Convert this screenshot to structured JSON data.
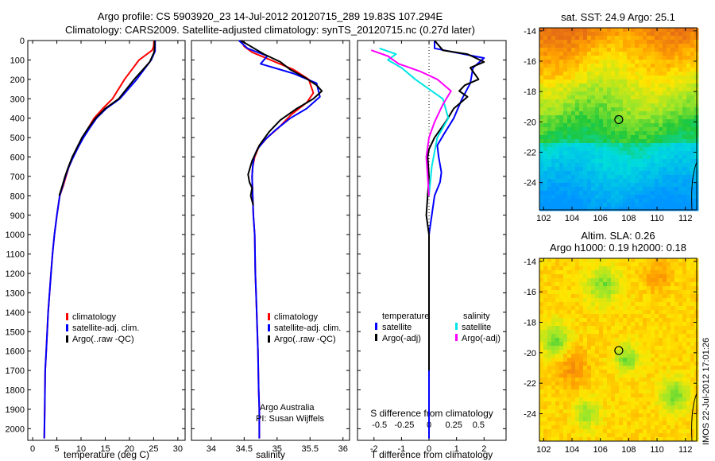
{
  "header": {
    "title_line1": "Argo profile: CS 5903920_23 14-Jul-2012 20120715_289 19.83S 107.294E",
    "title_line2": "Climatology: CARS2009. Satellite-adjusted climatology: synTS_20120715.nc (0.27d later)"
  },
  "colors": {
    "climatology": "#ff0000",
    "satellite": "#0000ff",
    "argo": "#000000",
    "satellite_salinity": "#00e5e5",
    "argo_salinity": "#ff00ff"
  },
  "depth_axis": {
    "ylim": [
      0,
      2060
    ],
    "ticks": [
      0,
      100,
      200,
      300,
      400,
      500,
      600,
      700,
      800,
      900,
      1000,
      1100,
      1200,
      1300,
      1400,
      1500,
      1600,
      1700,
      1800,
      1900,
      2000
    ]
  },
  "legend": {
    "climatology": "climatology",
    "satellite_clim": "satellite-adj. clim.",
    "argo": "Argo(..raw -QC)"
  },
  "diff_legend": {
    "temperature_head": "temperature",
    "salinity_head": "salinity",
    "satellite": "satellite",
    "argo_adj": "Argo(-adj)"
  },
  "notes": {
    "agency": "Argo Australia",
    "pi": "PI: Susan Wijffels"
  },
  "chart_data": [
    {
      "type": "line",
      "xlabel": "temperature (deg C)",
      "ylabel": "",
      "xlim": [
        -1,
        31.5
      ],
      "ylim": [
        2060,
        0
      ],
      "xticks": [
        "0",
        "5",
        "10",
        "15",
        "20",
        "25",
        "30"
      ],
      "xtick_values": [
        0,
        5,
        10,
        15,
        20,
        25,
        30
      ],
      "series": [
        {
          "name": "climatology",
          "color": "#ff0000",
          "x": [
            25.1,
            25.0,
            24.7,
            22.0,
            19.0,
            16.5,
            14.5,
            12.7,
            11.5,
            10.3,
            9.3,
            8.3,
            7.5,
            6.9,
            6.3,
            5.6,
            5.0,
            4.5,
            4.1,
            3.8,
            3.5,
            3.2,
            3.0,
            2.8,
            2.6,
            2.5,
            2.4
          ],
          "y": [
            0,
            30,
            50,
            100,
            200,
            300,
            350,
            400,
            450,
            500,
            550,
            600,
            650,
            700,
            750,
            800,
            900,
            1000,
            1100,
            1200,
            1300,
            1400,
            1500,
            1600,
            1700,
            1900,
            2050
          ]
        },
        {
          "name": "satellite-adj. clim.",
          "color": "#0000ff",
          "x": [
            25.3,
            25.3,
            25.3,
            24.5,
            21.5,
            18.0,
            15.2,
            13.2,
            11.8,
            10.5,
            9.4,
            8.4,
            7.5,
            6.8,
            6.2,
            5.6,
            5.0,
            4.5,
            4.1,
            3.8,
            3.5,
            3.2,
            3.0,
            2.8,
            2.6,
            2.5,
            2.4
          ],
          "y": [
            0,
            30,
            55,
            100,
            200,
            300,
            350,
            400,
            450,
            500,
            550,
            600,
            650,
            700,
            750,
            800,
            900,
            1000,
            1100,
            1200,
            1300,
            1400,
            1500,
            1600,
            1700,
            1900,
            2050
          ]
        },
        {
          "name": "Argo(..raw -QC)",
          "color": "#000000",
          "x": [
            25.2,
            25.2,
            25.1,
            24.2,
            21.0,
            17.8,
            15.0,
            13.0,
            11.5,
            10.2,
            9.2,
            8.2,
            7.4,
            6.7,
            6.1,
            5.5
          ],
          "y": [
            0,
            30,
            60,
            110,
            200,
            300,
            350,
            400,
            450,
            500,
            550,
            600,
            650,
            700,
            750,
            800
          ]
        }
      ]
    },
    {
      "type": "line",
      "xlabel": "salinity",
      "ylabel": "",
      "xlim": [
        33.7,
        36.1
      ],
      "ylim": [
        2060,
        0
      ],
      "xticks": [
        "34",
        "34.5",
        "35",
        "35.5",
        "36"
      ],
      "xtick_values": [
        34,
        34.5,
        35,
        35.5,
        36
      ],
      "series": [
        {
          "name": "climatology",
          "color": "#ff0000",
          "x": [
            34.45,
            34.5,
            34.62,
            34.9,
            35.25,
            35.48,
            35.55,
            35.45,
            35.22,
            35.02,
            34.85,
            34.72,
            34.66,
            34.63,
            34.62,
            34.63,
            34.64,
            34.66,
            34.67,
            34.68,
            34.69,
            34.7,
            34.71,
            34.72,
            34.73,
            34.73
          ],
          "y": [
            0,
            30,
            60,
            100,
            150,
            200,
            270,
            320,
            380,
            450,
            500,
            550,
            600,
            650,
            700,
            800,
            900,
            1000,
            1200,
            1300,
            1400,
            1500,
            1600,
            1800,
            1900,
            2050
          ]
        },
        {
          "name": "satellite-adj. clim.",
          "color": "#0000ff",
          "x": [
            34.42,
            34.55,
            34.85,
            34.75,
            35.25,
            35.6,
            35.65,
            35.45,
            35.2,
            34.98,
            34.82,
            34.7,
            34.65,
            34.63,
            34.62,
            34.63,
            34.64,
            34.66,
            34.67,
            34.68,
            34.69,
            34.7,
            34.71,
            34.72,
            34.73,
            34.73
          ],
          "y": [
            0,
            40,
            80,
            120,
            170,
            220,
            290,
            350,
            400,
            460,
            510,
            560,
            600,
            650,
            700,
            800,
            900,
            1000,
            1200,
            1300,
            1400,
            1500,
            1600,
            1800,
            1900,
            2050
          ]
        },
        {
          "name": "Argo(..raw -QC)",
          "color": "#000000",
          "x": [
            34.45,
            34.6,
            34.8,
            35.05,
            35.2,
            35.42,
            35.6,
            35.68,
            35.55,
            35.3,
            35.05,
            34.88,
            34.73,
            34.62,
            34.56,
            34.58,
            34.62,
            34.6,
            34.64
          ],
          "y": [
            0,
            30,
            70,
            110,
            150,
            190,
            230,
            260,
            300,
            350,
            410,
            470,
            540,
            620,
            690,
            730,
            760,
            800,
            850
          ]
        }
      ]
    },
    {
      "type": "line",
      "xlabel": "T difference from climatology",
      "xlabel_top": "S difference from climatology",
      "ylabel": "",
      "xlim": [
        -2.6,
        2.8
      ],
      "ylim": [
        2060,
        0
      ],
      "xticks": [
        "-2",
        "-1",
        "0",
        "1",
        "2"
      ],
      "xtick_values": [
        -2,
        -1,
        0,
        1,
        2
      ],
      "xticks_top": [
        "-0.5",
        "-0.25",
        "0",
        "0.25",
        "0.5"
      ],
      "xticks_top_values": [
        -1.8,
        -0.9,
        0,
        0.9,
        1.8
      ],
      "series": [
        {
          "name": "satellite (temperature)",
          "color": "#0000ff",
          "x": [
            0.2,
            0.2,
            0.9,
            2.0,
            1.6,
            1.5,
            1.2,
            0.9,
            0.55,
            0.3,
            0.35,
            0.45,
            0.4,
            0.2,
            0.1,
            0.0,
            0.0,
            0.0,
            0.0
          ],
          "y": [
            0,
            40,
            60,
            90,
            140,
            220,
            300,
            400,
            480,
            540,
            600,
            680,
            730,
            800,
            900,
            1000,
            1300,
            1700,
            2050
          ]
        },
        {
          "name": "Argo(-adj) (temperature)",
          "color": "#000000",
          "x": [
            0.2,
            0.5,
            1.4,
            2.0,
            1.5,
            1.8,
            1.3,
            1.1,
            1.4,
            0.9,
            0.6,
            0.2,
            0.0,
            -0.05,
            0.0,
            -0.1,
            0.0,
            0.0
          ],
          "y": [
            0,
            50,
            70,
            110,
            140,
            200,
            230,
            260,
            290,
            350,
            420,
            500,
            560,
            600,
            700,
            900,
            1000,
            1700
          ]
        },
        {
          "name": "satellite (salinity)",
          "color": "#00e5e5",
          "x": [
            -1.8,
            -1.2,
            -1.5,
            -1.0,
            -0.5,
            0.5,
            0.7,
            0.3,
            0.1,
            0.0
          ],
          "y": [
            40,
            70,
            100,
            140,
            200,
            300,
            400,
            500,
            650,
            800
          ]
        },
        {
          "name": "Argo(-adj) (salinity)",
          "color": "#ff00ff",
          "x": [
            -2.1,
            -1.5,
            -1.1,
            -0.3,
            0.3,
            0.8,
            0.5,
            0.2,
            0.0,
            -0.1,
            -0.05,
            0.0
          ],
          "y": [
            50,
            80,
            120,
            160,
            200,
            260,
            330,
            420,
            500,
            600,
            700,
            800
          ]
        }
      ]
    },
    {
      "type": "heatmap",
      "title": "sat. SST: 24.9 Argo: 25.1",
      "xticks": [
        "102",
        "104",
        "106",
        "108",
        "110",
        "112"
      ],
      "xtick_values": [
        102,
        104,
        106,
        108,
        110,
        112
      ],
      "yticks": [
        "-14",
        "-16",
        "-18",
        "-20",
        "-22",
        "-24"
      ],
      "ytick_values": [
        -14,
        -16,
        -18,
        -20,
        -22,
        -24
      ],
      "xlim": [
        101.7,
        112.8
      ],
      "ylim": [
        -25.8,
        -13.8
      ],
      "argo_position": [
        107.3,
        -19.85
      ]
    },
    {
      "type": "heatmap",
      "title_line1": "Altim. SLA: 0.26",
      "title_line2": "Argo h1000: 0.19 h2000: 0.18",
      "xticks": [
        "102",
        "104",
        "106",
        "108",
        "110",
        "112"
      ],
      "xtick_values": [
        102,
        104,
        106,
        108,
        110,
        112
      ],
      "yticks": [
        "-14",
        "-16",
        "-18",
        "-20",
        "-22",
        "-24"
      ],
      "ytick_values": [
        -14,
        -16,
        -18,
        -20,
        -22,
        -24
      ],
      "xlim": [
        101.7,
        112.8
      ],
      "ylim": [
        -25.8,
        -13.8
      ],
      "argo_position": [
        107.3,
        -19.85
      ]
    }
  ],
  "watermark": "IMOS 22-Jul-2012 17:01:26"
}
